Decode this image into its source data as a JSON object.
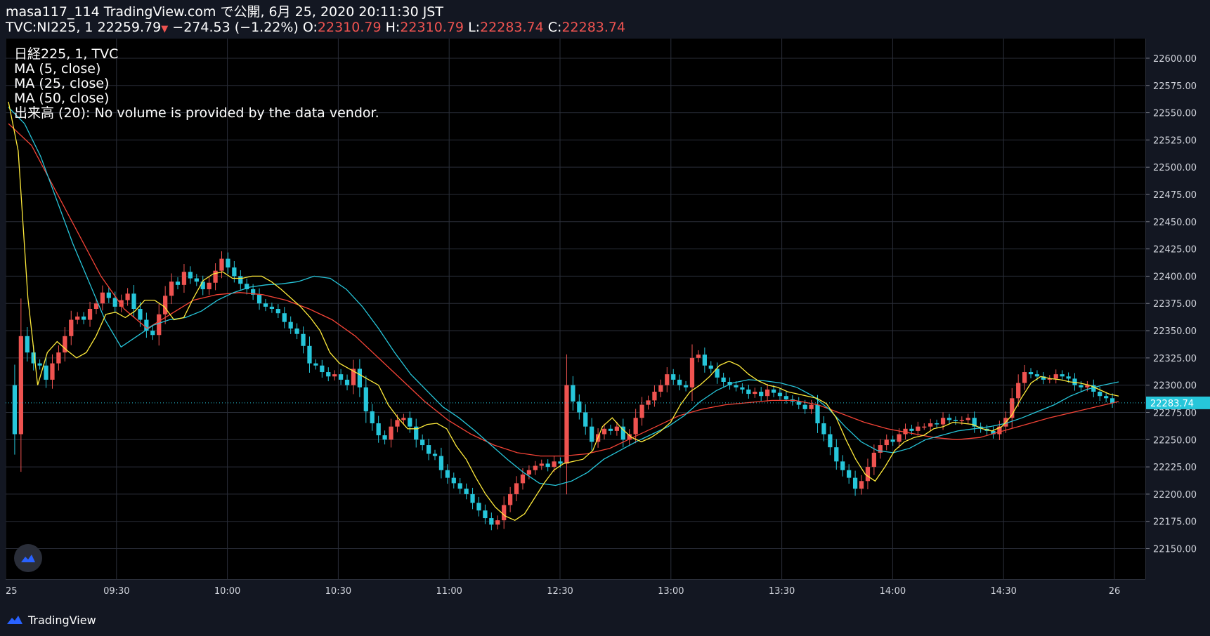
{
  "header": {
    "line1": "masa117_114 TradingView.com で公開, 6月 25, 2020 20:11:30 JST",
    "symbol": "TVC:NI225, 1",
    "last": "22259.79",
    "arrow": "▼",
    "change": "−274.53 (−1.22%)",
    "o_label": "O:",
    "o": "22310.79",
    "h_label": "H:",
    "h": "22310.79",
    "l_label": "L:",
    "l": "22283.74",
    "c_label": "C:",
    "c": "22283.74"
  },
  "legend": {
    "title": "日経225, 1, TVC",
    "ma5": "MA (5, close)",
    "ma25": "MA (25, close)",
    "ma50": "MA (50, close)",
    "volume": "出来高 (20): No volume is provided by the data vendor."
  },
  "footer": {
    "brand": "TradingView"
  },
  "colors": {
    "up": "#ef5350",
    "down": "#26c6da",
    "ma5": "#ffeb3b",
    "ma25": "#26c6da",
    "ma50": "#f44336",
    "background": "#000000",
    "grid": "#2a2e39",
    "price_tag": "#26c6da"
  },
  "chart_data": {
    "type": "candlestick",
    "y_ticks": [
      22600,
      22575,
      22550,
      22525,
      22500,
      22475,
      22450,
      22425,
      22400,
      22375,
      22350,
      22325,
      22300,
      22275,
      22250,
      22225,
      22200,
      22175,
      22150
    ],
    "y_tick_labels": [
      "22600.00",
      "22575.00",
      "22550.00",
      "22525.00",
      "22500.00",
      "22475.00",
      "22450.00",
      "22425.00",
      "22400.00",
      "22375.00",
      "22350.00",
      "22325.00",
      "22300.00",
      "22275.00",
      "22250.00",
      "22225.00",
      "22200.00",
      "22175.00",
      "22150.00"
    ],
    "ylim": [
      22122,
      22618
    ],
    "x_ticks": [
      "25",
      "09:30",
      "10:00",
      "10:30",
      "11:00",
      "12:30",
      "13:00",
      "13:30",
      "14:00",
      "14:30",
      "26"
    ],
    "current_price_label": "22283.74",
    "current_price": 22283.74,
    "close_path": [
      22300,
      22255,
      22345,
      22330,
      22320,
      22318,
      22305,
      22320,
      22330,
      22345,
      22360,
      22363,
      22360,
      22370,
      22375,
      22385,
      22380,
      22372,
      22378,
      22384,
      22370,
      22360,
      22350,
      22346,
      22365,
      22382,
      22395,
      22392,
      22404,
      22398,
      22395,
      22388,
      22394,
      22405,
      22416,
      22408,
      22400,
      22393,
      22388,
      22383,
      22375,
      22372,
      22370,
      22366,
      22358,
      22352,
      22347,
      22336,
      22320,
      22318,
      22312,
      22308,
      22310,
      22305,
      22300,
      22315,
      22298,
      22276,
      22265,
      22254,
      22250,
      22262,
      22268,
      22270,
      22262,
      22250,
      22245,
      22237,
      22235,
      22222,
      22215,
      22210,
      22205,
      22200,
      22192,
      22185,
      22178,
      22172,
      22176,
      22190,
      22200,
      22210,
      22218,
      22222,
      22226,
      22228,
      22225,
      22230,
      22228,
      22300,
      22285,
      22275,
      22262,
      22248,
      22255,
      22260,
      22258,
      22262,
      22250,
      22255,
      22270,
      22282,
      22286,
      22294,
      22300,
      22310,
      22305,
      22300,
      22298,
      22325,
      22328,
      22318,
      22315,
      22307,
      22303,
      22300,
      22298,
      22296,
      22292,
      22294,
      22290,
      22296,
      22293,
      22290,
      22287,
      22285,
      22282,
      22278,
      22282,
      22265,
      22255,
      22243,
      22230,
      22222,
      22215,
      22205,
      22212,
      22225,
      22238,
      22245,
      22250,
      22248,
      22255,
      22260,
      22258,
      22262,
      22262,
      22265,
      22264,
      22270,
      22268,
      22267,
      22268,
      22270,
      22262,
      22260,
      22258,
      22255,
      22262,
      22270,
      22288,
      22302,
      22312,
      22310,
      22308,
      22305,
      22306,
      22310,
      22308,
      22306,
      22300,
      22298,
      22300,
      22294,
      22290,
      22288,
      22283.74
    ],
    "ma5_path": [
      22560,
      22515,
      22380,
      22300,
      22330,
      22340,
      22332,
      22325,
      22330,
      22345,
      22365,
      22367,
      22362,
      22368,
      22378,
      22378,
      22372,
      22360,
      22362,
      22380,
      22396,
      22402,
      22404,
      22398,
      22398,
      22400,
      22400,
      22395,
      22388,
      22380,
      22372,
      22362,
      22350,
      22330,
      22320,
      22315,
      22310,
      22305,
      22300,
      22282,
      22270,
      22260,
      22260,
      22264,
      22265,
      22260,
      22244,
      22232,
      22215,
      22200,
      22188,
      22180,
      22176,
      22182,
      22196,
      22210,
      22222,
      22228,
      22230,
      22232,
      22240,
      22262,
      22270,
      22260,
      22252,
      22248,
      22252,
      22258,
      22266,
      22282,
      22294,
      22300,
      22308,
      22318,
      22322,
      22318,
      22310,
      22304,
      22300,
      22298,
      22294,
      22292,
      22290,
      22288,
      22283,
      22270,
      22250,
      22232,
      22218,
      22212,
      22225,
      22240,
      22248,
      22252,
      22254,
      22260,
      22262,
      22266,
      22265,
      22264,
      22260,
      22258,
      22262,
      22272,
      22288,
      22302,
      22308,
      22306,
      22305,
      22303,
      22302,
      22300,
      22296,
      22292,
      22290
    ],
    "ma25_path": [
      22555,
      22540,
      22510,
      22470,
      22430,
      22395,
      22360,
      22335,
      22345,
      22355,
      22360,
      22362,
      22368,
      22378,
      22385,
      22390,
      22392,
      22393,
      22395,
      22400,
      22398,
      22388,
      22372,
      22352,
      22330,
      22310,
      22295,
      22280,
      22270,
      22258,
      22245,
      22232,
      22220,
      22210,
      22208,
      22212,
      22220,
      22232,
      22240,
      22248,
      22255,
      22262,
      22272,
      22285,
      22295,
      22302,
      22305,
      22304,
      22302,
      22298,
      22290,
      22278,
      22262,
      22248,
      22240,
      22238,
      22242,
      22250,
      22254,
      22258,
      22260,
      22262,
      22265,
      22270,
      22276,
      22282,
      22290,
      22296,
      22300,
      22303
    ],
    "ma50_path": [
      22540,
      22520,
      22480,
      22440,
      22400,
      22370,
      22352,
      22365,
      22378,
      22383,
      22385,
      22383,
      22378,
      22370,
      22360,
      22345,
      22325,
      22305,
      22285,
      22268,
      22255,
      22245,
      22238,
      22235,
      22235,
      22237,
      22242,
      22252,
      22262,
      22272,
      22278,
      22282,
      22284,
      22286,
      22286,
      22282,
      22274,
      22266,
      22260,
      22256,
      22252,
      22250,
      22252,
      22258,
      22264,
      22270,
      22275,
      22280,
      22285
    ]
  }
}
